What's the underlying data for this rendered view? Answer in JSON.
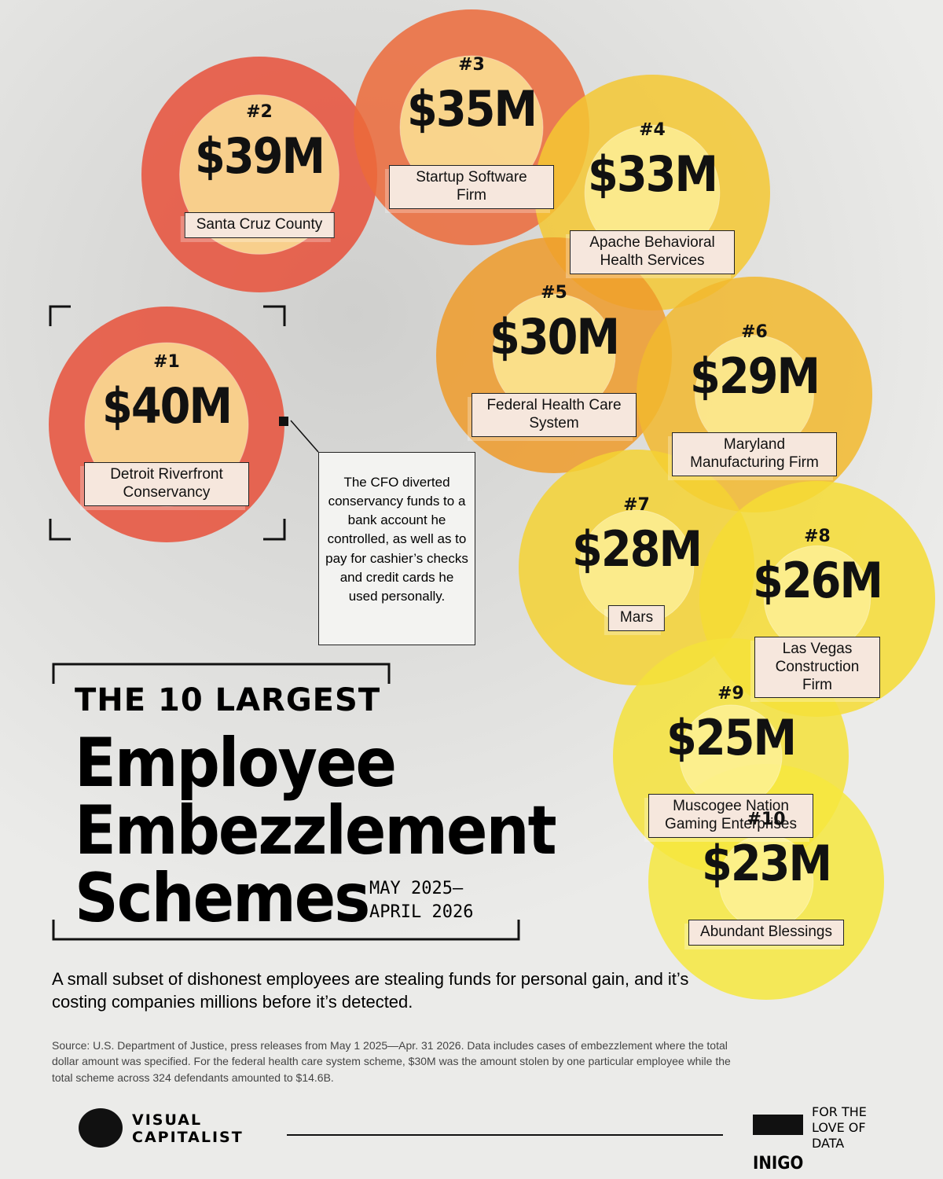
{
  "chart_data": {
    "type": "bubble",
    "title_prefix": "THE 10 LARGEST",
    "title": "Employee Embezzlement Schemes",
    "date_range": [
      "MAY 2025–",
      "APRIL 2026"
    ],
    "subtitle": "A small subset of dishonest employees are stealing funds for personal gain, and it’s costing companies millions before it’s detected.",
    "source": "Source: U.S. Department of Justice, press releases from May 1 2025—Apr. 31 2026. Data includes cases of embezzlement where the total dollar amount was specified. For the federal health care system scheme, $30M was the amount stolen by one particular employee while the total scheme across 324 defendants amounted to $14.6B.",
    "annotation": "The CFO diverted conservancy funds to a bank account he controlled, as well as to pay for cashier’s checks and credit cards he used personally.",
    "ranks": [
      "#1",
      "#2",
      "#3",
      "#4",
      "#5",
      "#6",
      "#7",
      "#8",
      "#9",
      "#10"
    ],
    "categories": [
      "Detroit Riverfront Conservancy",
      "Santa Cruz County",
      "Startup Software Firm",
      "Apache Behavioral Health Services",
      "Federal Health Care System",
      "Maryland Manufacturing Firm",
      "Mars",
      "Las Vegas Construction Firm",
      "Muscogee Nation Gaming Enterprises",
      "Abundant Blessings"
    ],
    "values": [
      40,
      39,
      35,
      33,
      30,
      29,
      28,
      26,
      25,
      23
    ],
    "value_labels": [
      "$40M",
      "$39M",
      "$35M",
      "$33M",
      "$30M",
      "$29M",
      "$28M",
      "$26M",
      "$25M",
      "$23M"
    ],
    "colors": [
      "#e8503a",
      "#e8503a",
      "#ec6a3a",
      "#f4c832",
      "#ef9b2a",
      "#f2b82e",
      "#f5d233",
      "#f6dc34",
      "#f5e23a",
      "#f6e83e"
    ],
    "brand": "VISUAL CAPITALIST",
    "partner": "INIGO",
    "tagline": "FOR THE LOVE OF DATA"
  }
}
